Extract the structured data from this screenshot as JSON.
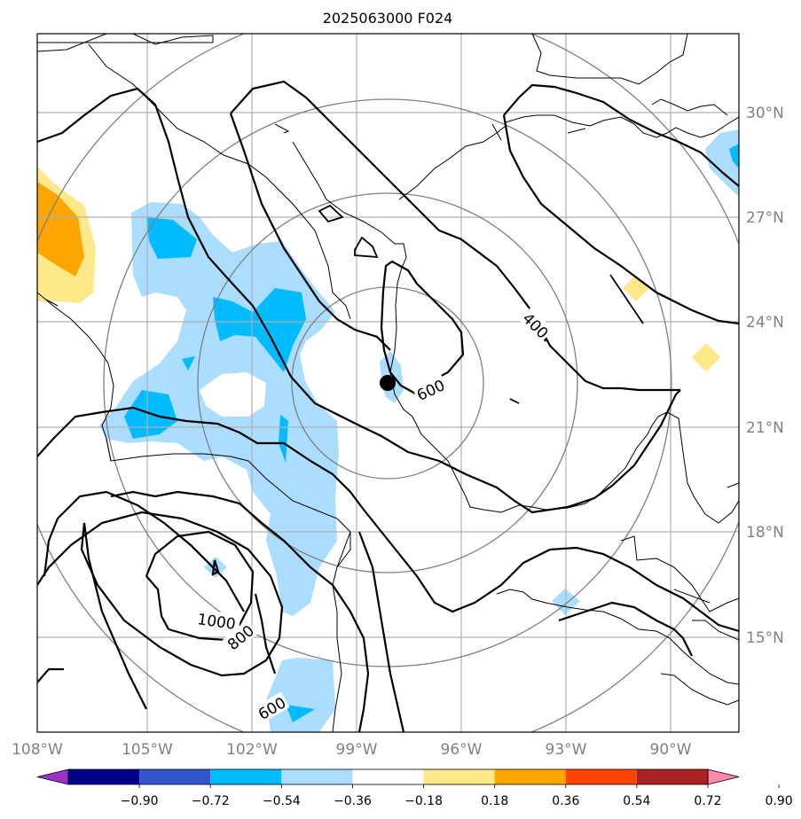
{
  "title": "2025063000 F024",
  "lon_ticks": [
    {
      "lon": -108,
      "label": "108°W"
    },
    {
      "lon": -105,
      "label": "105°W"
    },
    {
      "lon": -102,
      "label": "102°W"
    },
    {
      "lon": -99,
      "label": "99°W"
    },
    {
      "lon": -96,
      "label": "96°W"
    },
    {
      "lon": -93,
      "label": "93°W"
    },
    {
      "lon": -90,
      "label": "90°W"
    }
  ],
  "lat_ticks": [
    {
      "lat": 30,
      "label": "30°N"
    },
    {
      "lat": 27,
      "label": "27°N"
    },
    {
      "lat": 24,
      "label": "24°N"
    },
    {
      "lat": 21,
      "label": "21°N"
    },
    {
      "lat": 18,
      "label": "18°N"
    },
    {
      "lat": 15,
      "label": "15°N"
    }
  ],
  "colorbar": {
    "levels": [
      "−0.90",
      "−0.72",
      "−0.54",
      "−0.36",
      "−0.18",
      "0.18",
      "0.36",
      "0.54",
      "0.72",
      "0.90"
    ],
    "colors": [
      "#9933cc",
      "#000088",
      "#3355cc",
      "#00bbff",
      "#aaddff",
      "#ffffff",
      "#ffe88a",
      "#ffa500",
      "#ff4400",
      "#aa2222",
      "#ff88aa"
    ]
  },
  "contour_labels": [
    "400",
    "600",
    "1000",
    "800",
    "600"
  ],
  "storm_center": {
    "lon": -97.9,
    "lat": 22.3
  },
  "colors": {
    "contour": "#000000",
    "range_ring": "#808080",
    "grid": "#b0b0b0",
    "tick_label": "#808080"
  }
}
